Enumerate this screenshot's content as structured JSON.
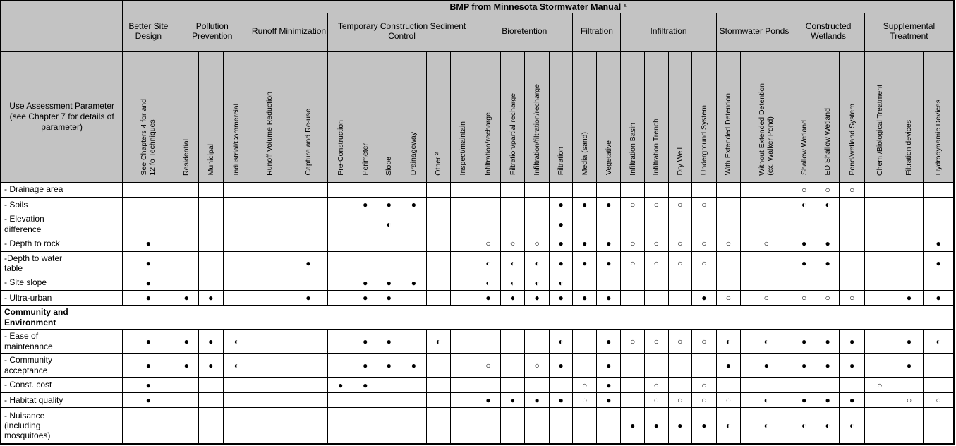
{
  "table": {
    "title": "BMP from Minnesota Stormwater Manual ¹",
    "corner_label": "Use Assessment Parameter (see Chapter 7 for details of parameter)",
    "groups": [
      {
        "label": "Better Site Design",
        "span": 1
      },
      {
        "label": "Pollution Prevention",
        "span": 3
      },
      {
        "label": "Runoff Minimization",
        "span": 2
      },
      {
        "label": "Temporary Construction Sediment Control",
        "span": 6
      },
      {
        "label": "Bioretention",
        "span": 4
      },
      {
        "label": "Filtration",
        "span": 2
      },
      {
        "label": "Infiltration",
        "span": 4
      },
      {
        "label": "Stormwater Ponds",
        "span": 2
      },
      {
        "label": "Constructed Wetlands",
        "span": 3
      },
      {
        "label": "Supplemental Treatment",
        "span": 3
      }
    ],
    "columns": [
      "See Chapters 4 for and\n12 fo Techniques",
      "Residential",
      "Municipal",
      "Industrial/Commercial",
      "Runoff Volume Reduction",
      "Capture and Re-use",
      "Pre-Construction",
      "Perimeter",
      "Slope",
      "Drainageway",
      "Other ²",
      "Inspect/maintain",
      "Infiltration/recharge",
      "Filtration/partial recharge",
      "Infiltration/filtration/recharge",
      "Filtration",
      "Media (sand)",
      "Vegetative",
      "Infiltration Basin",
      "Infiltration Trench",
      "Dry Well",
      "Underground System",
      "With Extended Detention",
      "Without Extended Detention\n(ex. Walker Pond)",
      "Shallow Wetland",
      "ED Shallow Wetland",
      "Pond/wetland System",
      "Chem./Biological Treatment",
      "Filtration devices",
      "Hydrodynamic Devices"
    ],
    "symbols": {
      "F": {
        "glyph": "●",
        "name": "filled-circle"
      },
      "H": {
        "glyph": "◐",
        "name": "half-filled-circle"
      },
      "O": {
        "glyph": "○",
        "name": "open-circle"
      }
    },
    "rows": [
      {
        "label": "- Drainage area",
        "cells": [
          "",
          "",
          "",
          "",
          "",
          "",
          "",
          "",
          "",
          "",
          "",
          "",
          "",
          "",
          "",
          "",
          "",
          "",
          "",
          "",
          "",
          "",
          "",
          "",
          "O",
          "O",
          "O",
          "",
          "",
          ""
        ]
      },
      {
        "label": "- Soils",
        "cells": [
          "",
          "",
          "",
          "",
          "",
          "",
          "",
          "F",
          "F",
          "F",
          "",
          "",
          "",
          "",
          "",
          "F",
          "F",
          "F",
          "O",
          "O",
          "O",
          "O",
          "",
          "",
          "H",
          "H",
          "",
          "",
          "",
          ""
        ]
      },
      {
        "label": "- Elevation\ndifference",
        "cells": [
          "",
          "",
          "",
          "",
          "",
          "",
          "",
          "",
          "H",
          "",
          "",
          "",
          "",
          "",
          "",
          "F",
          "",
          "",
          "",
          "",
          "",
          "",
          "",
          "",
          "",
          "",
          "",
          "",
          "",
          ""
        ]
      },
      {
        "label": "- Depth to rock",
        "cells": [
          "F",
          "",
          "",
          "",
          "",
          "",
          "",
          "",
          "",
          "",
          "",
          "",
          "O",
          "O",
          "O",
          "F",
          "F",
          "F",
          "O",
          "O",
          "O",
          "O",
          "O",
          "O",
          "F",
          "F",
          "",
          "",
          "",
          "F"
        ]
      },
      {
        "label": "-Depth to water\ntable",
        "cells": [
          "F",
          "",
          "",
          "",
          "",
          "F",
          "",
          "",
          "",
          "",
          "",
          "",
          "H",
          "H",
          "H",
          "F",
          "F",
          "F",
          "O",
          "O",
          "O",
          "O",
          "",
          "",
          "F",
          "F",
          "",
          "",
          "",
          "F"
        ]
      },
      {
        "label": "- Site slope",
        "cells": [
          "F",
          "",
          "",
          "",
          "",
          "",
          "",
          "F",
          "F",
          "F",
          "",
          "",
          "H",
          "H",
          "H",
          "H",
          "",
          "",
          "",
          "",
          "",
          "",
          "",
          "",
          "",
          "",
          "",
          "",
          "",
          ""
        ]
      },
      {
        "label": "- Ultra-urban",
        "cells": [
          "F",
          "F",
          "F",
          "",
          "",
          "F",
          "",
          "F",
          "F",
          "",
          "",
          "",
          "F",
          "F",
          "F",
          "F",
          "F",
          "F",
          "",
          "",
          "",
          "F",
          "O",
          "O",
          "O",
          "O",
          "O",
          "",
          "F",
          "F"
        ]
      },
      {
        "label": "Community and\nEnvironment",
        "section": true
      },
      {
        "label": "- Ease of\nmaintenance",
        "cells": [
          "F",
          "F",
          "F",
          "H",
          "",
          "",
          "",
          "F",
          "F",
          "",
          "H",
          "",
          "",
          "",
          "",
          "H",
          "",
          "F",
          "O",
          "O",
          "O",
          "O",
          "H",
          "H",
          "F",
          "F",
          "F",
          "",
          "F",
          "H"
        ]
      },
      {
        "label": "- Community\nacceptance",
        "cells": [
          "F",
          "F",
          "F",
          "H",
          "",
          "",
          "",
          "F",
          "F",
          "F",
          "",
          "",
          "O",
          "",
          "O",
          "F",
          "",
          "F",
          "",
          "",
          "",
          "",
          "F",
          "F",
          "F",
          "F",
          "F",
          "",
          "F",
          ""
        ]
      },
      {
        "label": "- Const. cost",
        "cells": [
          "F",
          "",
          "",
          "",
          "",
          "",
          "F",
          "F",
          "",
          "",
          "",
          "",
          "",
          "",
          "",
          "",
          "O",
          "F",
          "",
          "O",
          "",
          "O",
          "",
          "",
          "",
          "",
          "",
          "O",
          "",
          ""
        ]
      },
      {
        "label": "- Habitat quality",
        "cells": [
          "F",
          "",
          "",
          "",
          "",
          "",
          "",
          "",
          "",
          "",
          "",
          "",
          "F",
          "F",
          "F",
          "F",
          "O",
          "F",
          "",
          "O",
          "O",
          "O",
          "O",
          "H",
          "F",
          "F",
          "F",
          "",
          "O",
          "O"
        ]
      },
      {
        "label": "- Nuisance\n(including\nmosquitoes)",
        "cells": [
          "",
          "",
          "",
          "",
          "",
          "",
          "",
          "",
          "",
          "",
          "",
          "",
          "",
          "",
          "",
          "",
          "",
          "",
          "F",
          "F",
          "F",
          "F",
          "H",
          "H",
          "H",
          "H",
          "H",
          "",
          "",
          ""
        ]
      }
    ]
  }
}
